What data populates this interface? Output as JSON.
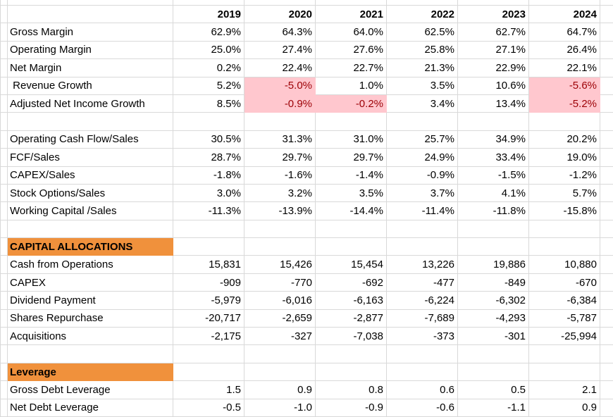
{
  "app": {
    "description": "Financial metrics spreadsheet, yearly columns"
  },
  "years": [
    "2019",
    "2020",
    "2021",
    "2022",
    "2023",
    "2024"
  ],
  "colors": {
    "section_fill": "#F0913C",
    "highlight_fill": "#FFC7CE",
    "highlight_text": "#9C0006",
    "gridline": "#D9D9D9",
    "text": "#000000",
    "background": "#FFFFFF"
  },
  "rows": [
    {
      "type": "year_header"
    },
    {
      "type": "data",
      "label": "Gross Margin",
      "values": [
        "62.9%",
        "64.3%",
        "64.0%",
        "62.5%",
        "62.7%",
        "64.7%"
      ],
      "highlights": []
    },
    {
      "type": "data",
      "label": "Operating Margin",
      "values": [
        "25.0%",
        "27.4%",
        "27.6%",
        "25.8%",
        "27.1%",
        "26.4%"
      ],
      "highlights": []
    },
    {
      "type": "data",
      "label": "Net Margin",
      "values": [
        "0.2%",
        "22.4%",
        "22.7%",
        "21.3%",
        "22.9%",
        "22.1%"
      ],
      "highlights": []
    },
    {
      "type": "data",
      "label": " Revenue Growth",
      "values": [
        "5.2%",
        "-5.0%",
        "1.0%",
        "3.5%",
        "10.6%",
        "-5.6%"
      ],
      "highlights": [
        1,
        5
      ]
    },
    {
      "type": "data",
      "label": "Adjusted Net Income Growth",
      "values": [
        "8.5%",
        "-0.9%",
        "-0.2%",
        "3.4%",
        "13.4%",
        "-5.2%"
      ],
      "highlights": [
        1,
        2,
        5
      ]
    },
    {
      "type": "blank"
    },
    {
      "type": "data",
      "label": "Operating Cash Flow/Sales",
      "values": [
        "30.5%",
        "31.3%",
        "31.0%",
        "25.7%",
        "34.9%",
        "20.2%"
      ],
      "highlights": []
    },
    {
      "type": "data",
      "label": "FCF/Sales",
      "values": [
        "28.7%",
        "29.7%",
        "29.7%",
        "24.9%",
        "33.4%",
        "19.0%"
      ],
      "highlights": []
    },
    {
      "type": "data",
      "label": "CAPEX/Sales",
      "values": [
        "-1.8%",
        "-1.6%",
        "-1.4%",
        "-0.9%",
        "-1.5%",
        "-1.2%"
      ],
      "highlights": []
    },
    {
      "type": "data",
      "label": "Stock Options/Sales",
      "values": [
        "3.0%",
        "3.2%",
        "3.5%",
        "3.7%",
        "4.1%",
        "5.7%"
      ],
      "highlights": []
    },
    {
      "type": "data",
      "label": "Working Capital /Sales",
      "values": [
        "-11.3%",
        "-13.9%",
        "-14.4%",
        "-11.4%",
        "-11.8%",
        "-15.8%"
      ],
      "highlights": []
    },
    {
      "type": "blank"
    },
    {
      "type": "section",
      "label": "CAPITAL ALLOCATIONS"
    },
    {
      "type": "data",
      "label": "Cash from Operations",
      "values": [
        "15,831",
        "15,426",
        "15,454",
        "13,226",
        "19,886",
        "10,880"
      ],
      "highlights": []
    },
    {
      "type": "data",
      "label": "CAPEX",
      "values": [
        "-909",
        "-770",
        "-692",
        "-477",
        "-849",
        "-670"
      ],
      "highlights": []
    },
    {
      "type": "data",
      "label": "Dividend Payment",
      "values": [
        "-5,979",
        "-6,016",
        "-6,163",
        "-6,224",
        "-6,302",
        "-6,384"
      ],
      "highlights": []
    },
    {
      "type": "data",
      "label": "Shares Repurchase",
      "values": [
        "-20,717",
        "-2,659",
        "-2,877",
        "-7,689",
        "-4,293",
        "-5,787"
      ],
      "highlights": []
    },
    {
      "type": "data",
      "label": "Acquisitions",
      "values": [
        "-2,175",
        "-327",
        "-7,038",
        "-373",
        "-301",
        "-25,994"
      ],
      "highlights": []
    },
    {
      "type": "blank"
    },
    {
      "type": "section",
      "label": "Leverage"
    },
    {
      "type": "data",
      "label": "Gross Debt Leverage",
      "values": [
        "1.5",
        "0.9",
        "0.8",
        "0.6",
        "0.5",
        "2.1"
      ],
      "highlights": []
    },
    {
      "type": "data",
      "label": "Net Debt Leverage",
      "values": [
        "-0.5",
        "-1.0",
        "-0.9",
        "-0.6",
        "-1.1",
        "0.9"
      ],
      "highlights": []
    }
  ]
}
